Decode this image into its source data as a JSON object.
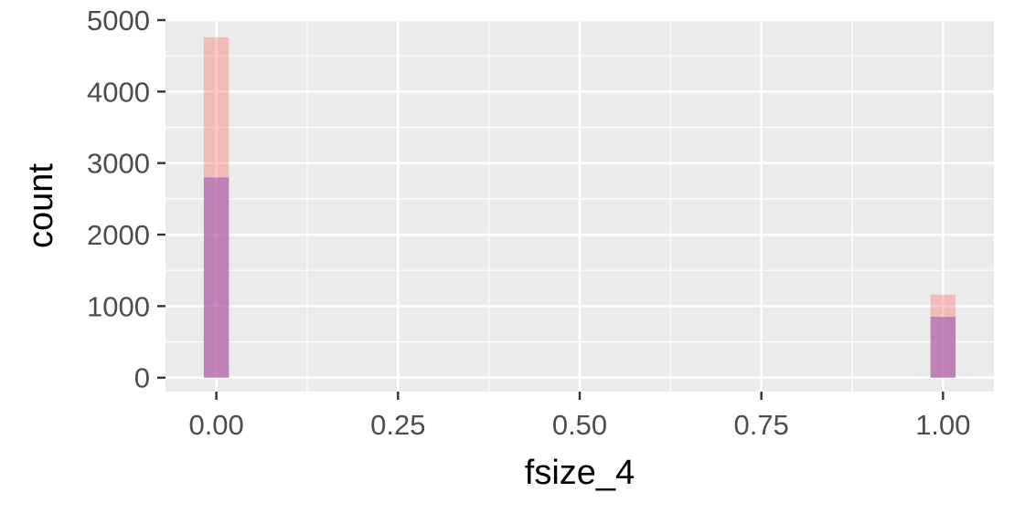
{
  "chart_data": {
    "type": "bar",
    "xlabel": "fsize_4",
    "ylabel": "count",
    "xlim": [
      -0.07,
      1.07
    ],
    "ylim": [
      -195,
      5000
    ],
    "x_ticks": [
      "0.00",
      "0.25",
      "0.50",
      "0.75",
      "1.00"
    ],
    "y_ticks": [
      "0",
      "1000",
      "2000",
      "3000",
      "4000",
      "5000"
    ],
    "grid": true,
    "bin_width": 0.0345,
    "series": [
      {
        "color": "#F8766D",
        "opacity": 0.4,
        "bars": [
          {
            "x": 0.0,
            "count": 4760
          },
          {
            "x": 1.0,
            "count": 1160
          }
        ]
      },
      {
        "color": "#9B59B6",
        "opacity": 0.6,
        "bars": [
          {
            "x": 0.0,
            "count": 2800
          },
          {
            "x": 1.0,
            "count": 850
          }
        ]
      }
    ],
    "panel_background": "#EBEBEB",
    "grid_color": "#FFFFFF"
  }
}
